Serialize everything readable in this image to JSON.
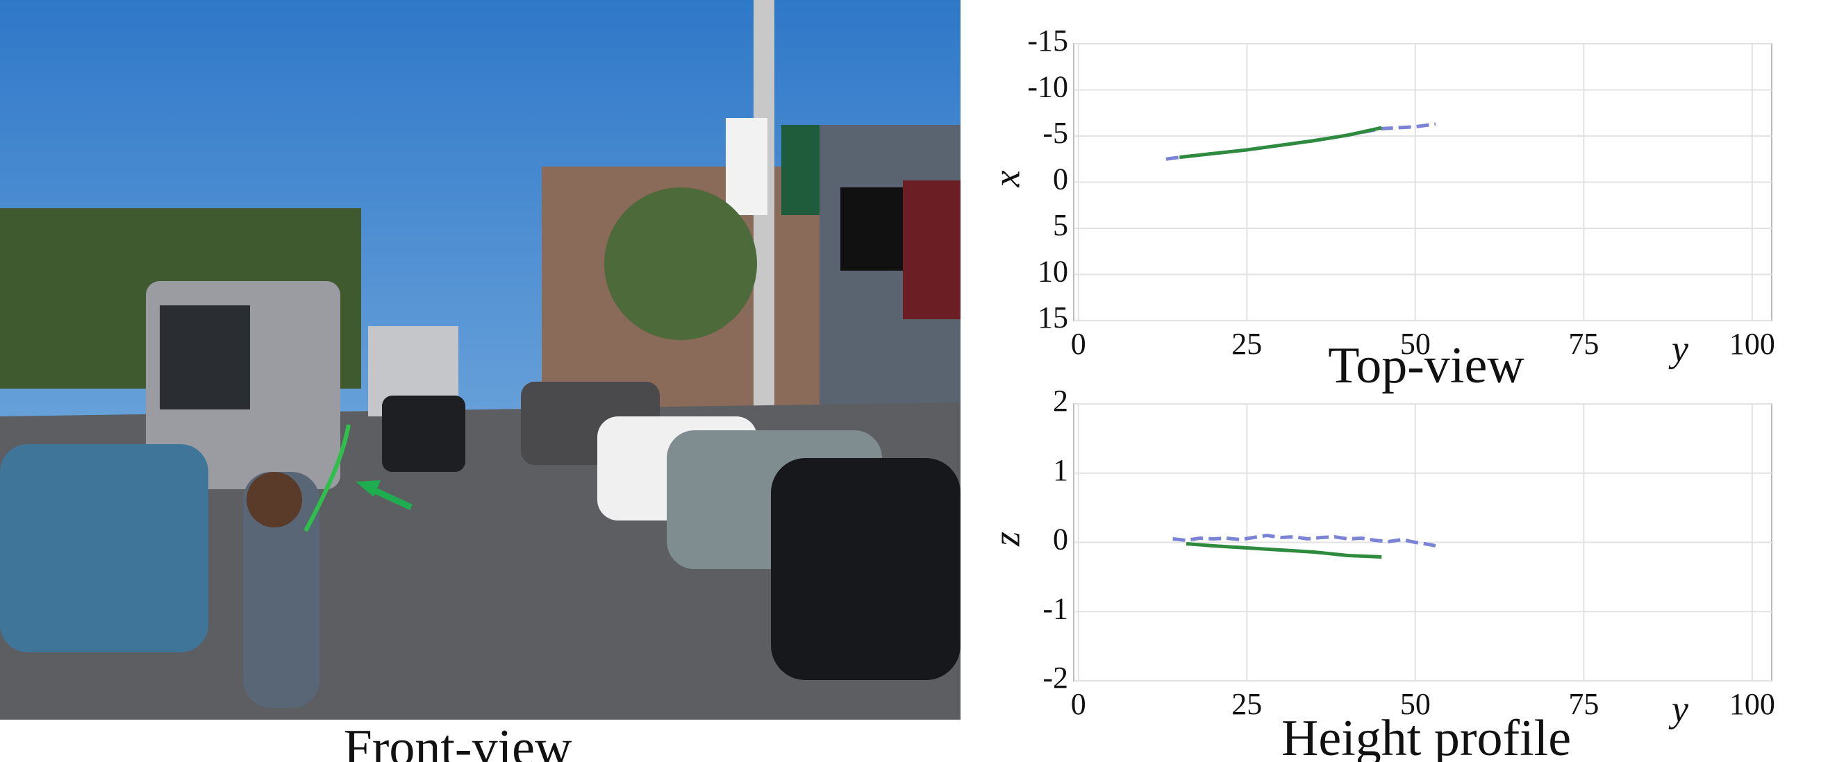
{
  "image_caption": "Front-view",
  "chart_data": [
    {
      "type": "line",
      "title": "Top-view",
      "x_label": "y",
      "y_label": "x",
      "xlim": [
        -0.7,
        102.9
      ],
      "xticks": [
        0,
        25,
        50,
        75,
        100
      ],
      "ylim": [
        15,
        -15
      ],
      "yticks": [
        -15,
        -10,
        -5,
        0,
        5,
        10,
        15
      ],
      "grid": true,
      "series": [
        {
          "color": "#7b83d6",
          "dashed": true,
          "x": [
            13,
            15,
            20,
            25,
            30,
            35,
            40,
            45,
            50,
            53
          ],
          "values": [
            -2.5,
            -2.7,
            -3.1,
            -3.5,
            -4.0,
            -4.5,
            -5.1,
            -5.8,
            -6.0,
            -6.3
          ]
        },
        {
          "color": "#2e8b3e",
          "dashed": false,
          "x": [
            15,
            20,
            25,
            30,
            35,
            40,
            45
          ],
          "values": [
            -2.7,
            -3.1,
            -3.5,
            -4.0,
            -4.5,
            -5.1,
            -5.9
          ]
        }
      ]
    },
    {
      "type": "line",
      "title": "Height profile",
      "x_label": "y",
      "y_label": "z",
      "xlim": [
        -0.7,
        102.9
      ],
      "xticks": [
        0,
        25,
        50,
        75,
        100
      ],
      "ylim": [
        -2,
        2
      ],
      "yticks": [
        -2,
        -1,
        0,
        1,
        2
      ],
      "grid": true,
      "series": [
        {
          "color": "#7b83d6",
          "dashed": true,
          "x": [
            14,
            16,
            18,
            20,
            22,
            24,
            26,
            28,
            30,
            32,
            34,
            36,
            38,
            40,
            42,
            44,
            46,
            48,
            50,
            52,
            53
          ],
          "values": [
            0.05,
            0.03,
            0.06,
            0.05,
            0.06,
            0.04,
            0.07,
            0.1,
            0.07,
            0.08,
            0.05,
            0.07,
            0.08,
            0.05,
            0.06,
            0.03,
            0.01,
            0.04,
            0.0,
            -0.03,
            -0.05
          ]
        },
        {
          "color": "#2e8b3e",
          "dashed": false,
          "x": [
            16,
            20,
            25,
            30,
            35,
            40,
            45
          ],
          "values": [
            -0.02,
            -0.05,
            -0.08,
            -0.11,
            -0.14,
            -0.19,
            -0.21
          ]
        }
      ]
    }
  ]
}
